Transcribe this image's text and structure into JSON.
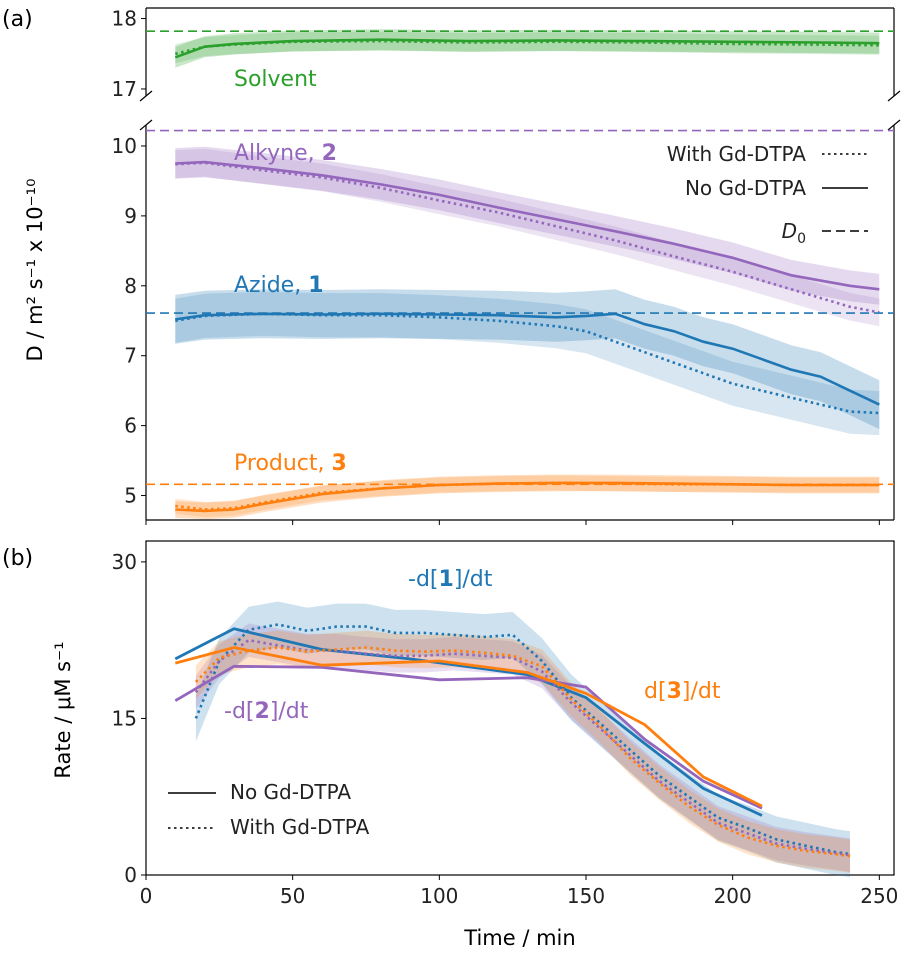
{
  "figure": {
    "panel_a_label": "(a)",
    "panel_b_label": "(b)"
  },
  "chart_data": [
    {
      "panel": "(a)",
      "type": "line",
      "xlabel": "",
      "ylabel": "D / m² s⁻¹ x 10⁻¹⁰",
      "xlim": [
        0,
        255
      ],
      "xticks": [
        0,
        50,
        100,
        150,
        200,
        250
      ],
      "broken_axis": true,
      "upper_ylim": [
        16.9,
        18.15
      ],
      "upper_yticks": [
        17,
        18
      ],
      "lower_ylim": [
        4.65,
        10.3
      ],
      "lower_yticks": [
        5,
        6,
        7,
        8,
        9,
        10
      ],
      "legend": {
        "placement": "top-right",
        "entries": [
          {
            "label": "With Gd-DTPA",
            "style": "dotted"
          },
          {
            "label": "No Gd-DTPA",
            "style": "solid"
          },
          {
            "label_main": "D",
            "label_sub": "0",
            "style": "dashed"
          }
        ]
      },
      "species": [
        {
          "label": "Solvent",
          "bold_index": "",
          "color": "#2ca02c",
          "D0": 17.82,
          "axis": "upper",
          "x": [
            10,
            20,
            30,
            50,
            80,
            110,
            140,
            170,
            200,
            230,
            250
          ],
          "no_gd": [
            17.45,
            17.6,
            17.64,
            17.68,
            17.7,
            17.68,
            17.69,
            17.68,
            17.67,
            17.66,
            17.65
          ],
          "with_gd": [
            17.5,
            17.6,
            17.63,
            17.67,
            17.68,
            17.66,
            17.67,
            17.66,
            17.64,
            17.63,
            17.62
          ],
          "band": 0.15
        },
        {
          "label": "Alkyne, ",
          "bold_index": "2",
          "color": "#9467bd",
          "D0": 10.22,
          "axis": "lower",
          "x": [
            10,
            20,
            40,
            60,
            80,
            100,
            120,
            140,
            160,
            180,
            200,
            220,
            240,
            250
          ],
          "no_gd": [
            9.75,
            9.77,
            9.68,
            9.58,
            9.45,
            9.3,
            9.12,
            8.95,
            8.78,
            8.6,
            8.4,
            8.15,
            8.0,
            7.95
          ],
          "with_gd": [
            9.74,
            9.76,
            9.65,
            9.55,
            9.4,
            9.22,
            9.05,
            8.85,
            8.65,
            8.42,
            8.2,
            7.95,
            7.7,
            7.62
          ],
          "band": 0.22
        },
        {
          "label": "Azide, ",
          "bold_index": "1",
          "color": "#1f77b4",
          "D0": 7.61,
          "axis": "lower",
          "x": [
            10,
            20,
            40,
            60,
            80,
            100,
            120,
            140,
            150,
            160,
            170,
            180,
            190,
            200,
            210,
            220,
            230,
            240,
            250
          ],
          "no_gd": [
            7.52,
            7.58,
            7.6,
            7.59,
            7.6,
            7.59,
            7.58,
            7.55,
            7.57,
            7.6,
            7.45,
            7.35,
            7.2,
            7.1,
            6.95,
            6.8,
            6.7,
            6.5,
            6.3
          ],
          "with_gd": [
            7.5,
            7.57,
            7.6,
            7.58,
            7.58,
            7.55,
            7.5,
            7.42,
            7.35,
            7.2,
            7.05,
            6.9,
            6.75,
            6.6,
            6.5,
            6.4,
            6.3,
            6.2,
            6.18
          ],
          "band": 0.35
        },
        {
          "label": "Product, ",
          "bold_index": "3",
          "color": "#ff7f0e",
          "D0": 5.16,
          "axis": "lower",
          "x": [
            10,
            20,
            30,
            40,
            50,
            60,
            80,
            100,
            120,
            140,
            160,
            180,
            200,
            220,
            240,
            250
          ],
          "no_gd": [
            4.8,
            4.78,
            4.8,
            4.88,
            4.95,
            5.02,
            5.1,
            5.15,
            5.17,
            5.18,
            5.18,
            5.17,
            5.16,
            5.15,
            5.15,
            5.15
          ],
          "with_gd": [
            4.85,
            4.8,
            4.82,
            4.9,
            4.97,
            5.04,
            5.1,
            5.15,
            5.17,
            5.18,
            5.17,
            5.16,
            5.16,
            5.15,
            5.15,
            5.15
          ],
          "band": 0.12
        }
      ]
    },
    {
      "panel": "(b)",
      "type": "line",
      "xlabel": "Time / min",
      "ylabel": "Rate / μM s⁻¹",
      "xlim": [
        0,
        255
      ],
      "ylim": [
        0,
        32
      ],
      "xticks": [
        0,
        50,
        100,
        150,
        200,
        250
      ],
      "yticks": [
        0,
        15,
        30
      ],
      "legend": {
        "placement": "bottom-left",
        "entries": [
          {
            "label": "No Gd-DTPA",
            "style": "solid"
          },
          {
            "label": "With Gd-DTPA",
            "style": "dotted"
          }
        ]
      },
      "series": [
        {
          "label_prefix": "-d[",
          "bold_index": "1",
          "label_suffix": "]/dt",
          "color": "#1f77b4",
          "no_gd": {
            "x": [
              10,
              30,
              60,
              90,
              130,
              150,
              170,
              190,
              210
            ],
            "y": [
              20.7,
              23.6,
              21.6,
              20.7,
              19.2,
              17.0,
              12.6,
              8.3,
              5.7
            ]
          },
          "with_gd": {
            "x": [
              17,
              25,
              35,
              45,
              55,
              65,
              75,
              85,
              95,
              105,
              115,
              125,
              135,
              145,
              155,
              165,
              175,
              185,
              195,
              205,
              215,
              225,
              235,
              240
            ],
            "y": [
              15,
              20.5,
              23.5,
              24.0,
              23.4,
              23.8,
              23.8,
              23.2,
              23.2,
              23.0,
              22.8,
              23.0,
              20.5,
              17.0,
              14.5,
              12.0,
              9.5,
              7.5,
              5.5,
              4.5,
              3.4,
              2.8,
              2.2,
              2.0
            ]
          },
          "band": 2.2
        },
        {
          "label_prefix": "-d[",
          "bold_index": "2",
          "label_suffix": "]/dt",
          "color": "#9467bd",
          "no_gd": {
            "x": [
              10,
              30,
              60,
              100,
              130,
              150,
              170,
              190,
              210
            ],
            "y": [
              16.7,
              20.0,
              19.9,
              18.7,
              18.9,
              18.0,
              13.0,
              9.0,
              6.4
            ]
          },
          "with_gd": {
            "x": [
              17,
              25,
              35,
              45,
              55,
              65,
              75,
              85,
              95,
              105,
              115,
              125,
              135,
              145,
              155,
              165,
              175,
              185,
              195,
              205,
              215,
              225,
              235,
              240
            ],
            "y": [
              17.5,
              20.5,
              22.5,
              22.0,
              21.5,
              21.5,
              21.2,
              21.0,
              21.0,
              21.2,
              21.0,
              20.8,
              19.5,
              16.5,
              14.0,
              11.5,
              9.0,
              7.0,
              5.0,
              4.0,
              3.0,
              2.5,
              2.1,
              1.9
            ]
          },
          "band": 1.6
        },
        {
          "label_prefix": "d[",
          "bold_index": "3",
          "label_suffix": "]/dt",
          "color": "#ff7f0e",
          "no_gd": {
            "x": [
              10,
              30,
              60,
              100,
              130,
              150,
              170,
              190,
              210
            ],
            "y": [
              20.3,
              21.8,
              20.1,
              20.5,
              19.4,
              17.4,
              14.4,
              9.4,
              6.6
            ]
          },
          "with_gd": {
            "x": [
              17,
              25,
              35,
              45,
              55,
              65,
              75,
              85,
              95,
              105,
              115,
              125,
              135,
              145,
              155,
              165,
              175,
              185,
              195,
              205,
              215,
              225,
              235,
              240
            ],
            "y": [
              18.5,
              20.8,
              21.5,
              21.8,
              21.4,
              21.6,
              21.8,
              21.5,
              21.4,
              21.5,
              21.3,
              21.0,
              20.0,
              16.8,
              14.2,
              11.2,
              8.8,
              6.6,
              4.8,
              3.6,
              2.8,
              2.3,
              2.0,
              1.8
            ]
          },
          "band": 1.6
        }
      ]
    }
  ]
}
